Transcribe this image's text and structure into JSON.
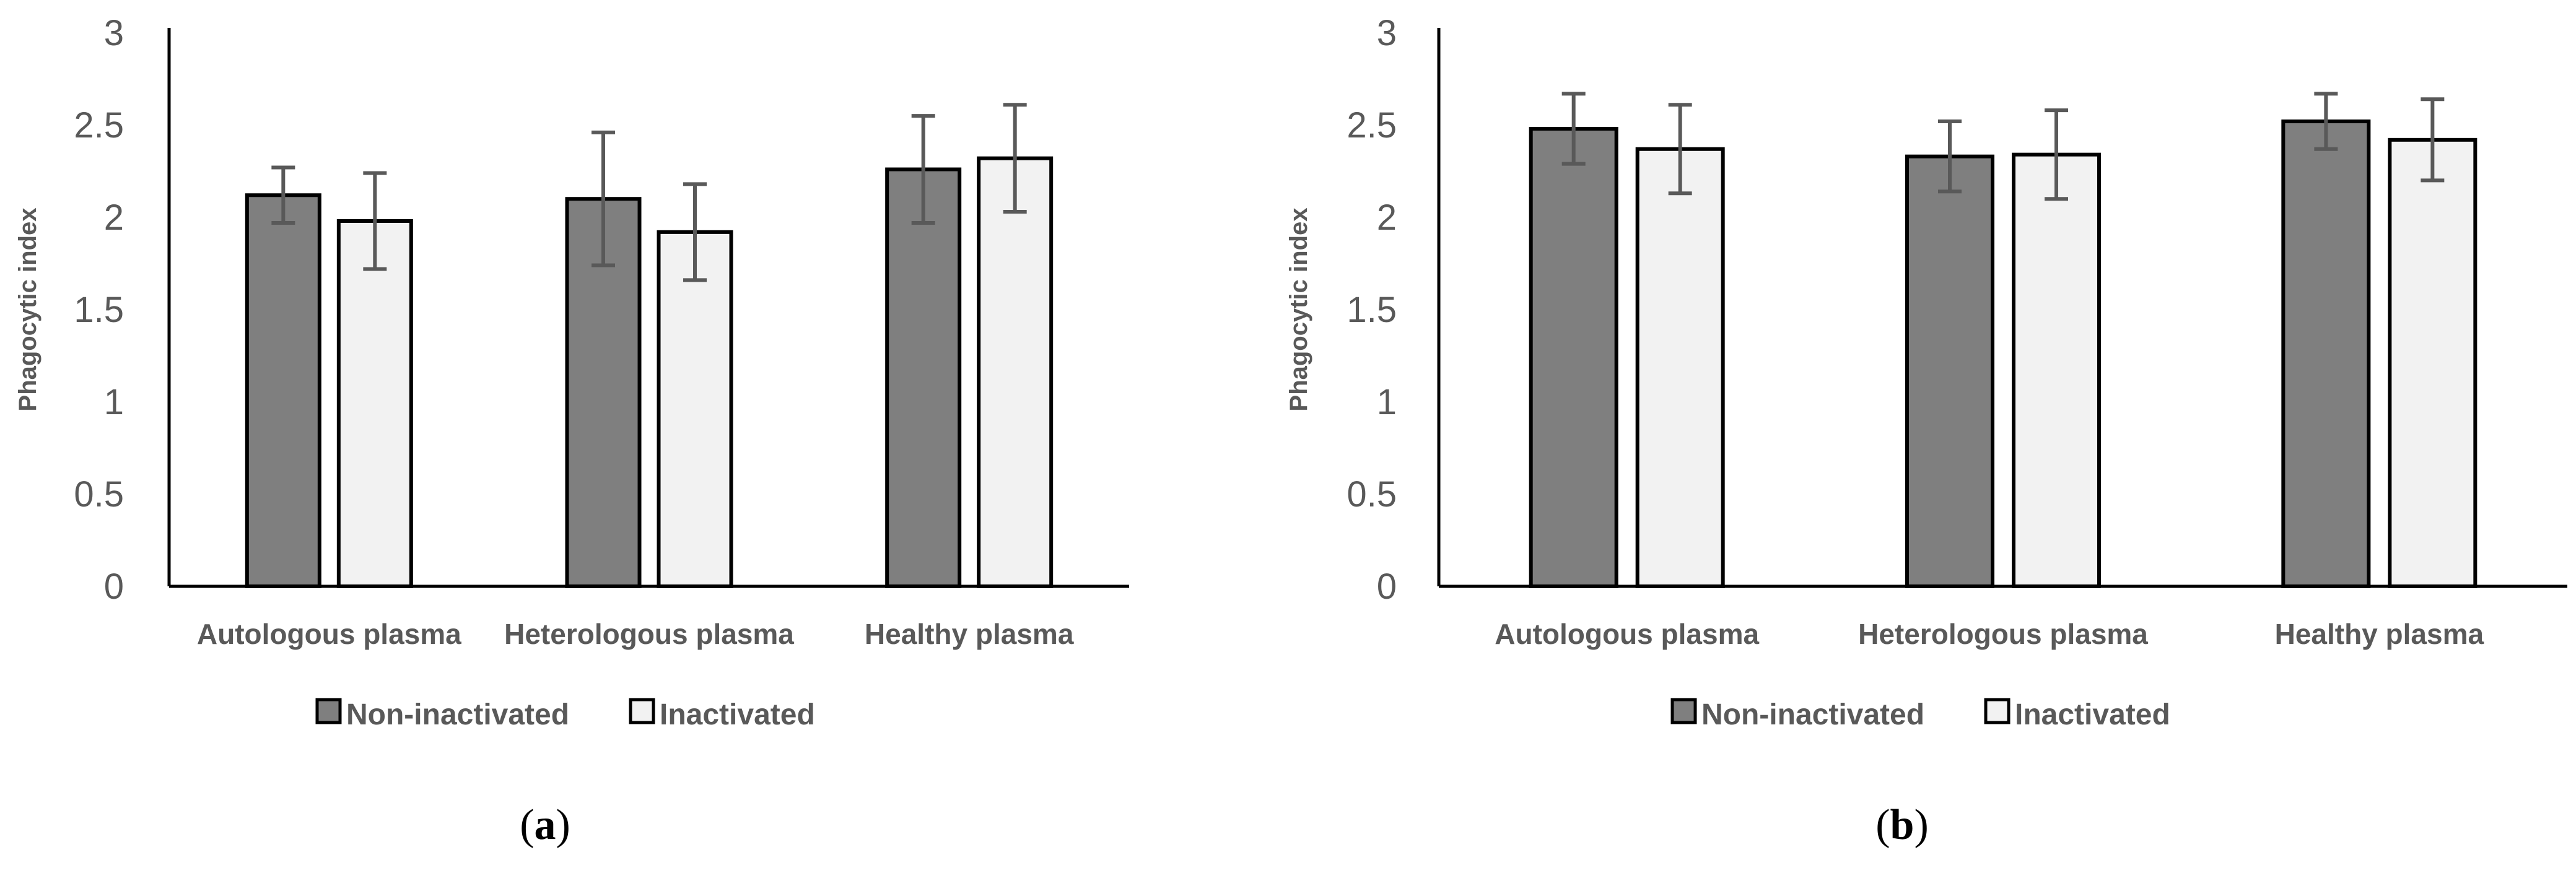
{
  "chart_data": [
    {
      "type": "bar",
      "panel": "a",
      "title": "",
      "xlabel": "",
      "ylabel": "Phagocytic index",
      "ylim": [
        0,
        3
      ],
      "yticks": [
        "0",
        "0.5",
        "1",
        "1.5",
        "2",
        "2.5",
        "3"
      ],
      "categories": [
        "Autologous plasma",
        "Heterologous plasma",
        "Healthy plasma"
      ],
      "legend_position": "bottom",
      "series": [
        {
          "name": "Non-inactivated",
          "color": "#7f7f7f",
          "values": [
            2.12,
            2.1,
            2.26
          ],
          "errors": [
            0.15,
            0.36,
            0.29
          ]
        },
        {
          "name": "Inactivated",
          "color": "#f2f2f2",
          "values": [
            1.98,
            1.92,
            2.32
          ],
          "errors": [
            0.26,
            0.26,
            0.29
          ]
        }
      ]
    },
    {
      "type": "bar",
      "panel": "b",
      "title": "",
      "xlabel": "",
      "ylabel": "Phagocytic index",
      "ylim": [
        0,
        3
      ],
      "yticks": [
        "0",
        "0.5",
        "1",
        "1.5",
        "2",
        "2.5",
        "3"
      ],
      "categories": [
        "Autologous plasma",
        "Heterologous plasma",
        "Healthy plasma"
      ],
      "legend_position": "bottom",
      "series": [
        {
          "name": "Non-inactivated",
          "color": "#7f7f7f",
          "values": [
            2.48,
            2.33,
            2.52
          ],
          "errors": [
            0.19,
            0.19,
            0.15
          ]
        },
        {
          "name": "Inactivated",
          "color": "#f2f2f2",
          "values": [
            2.37,
            2.34,
            2.42
          ],
          "errors": [
            0.24,
            0.24,
            0.22
          ]
        }
      ]
    }
  ]
}
